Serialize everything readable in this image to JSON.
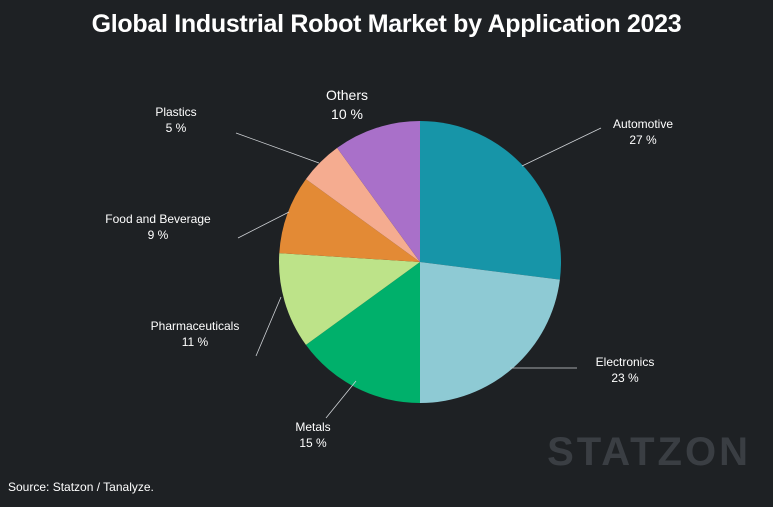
{
  "title": "Global Industrial Robot Market by Application 2023",
  "source": "Source: Statzon / Tanalyze.",
  "watermark": "STATZON",
  "chart_data": {
    "type": "pie",
    "title": "Global Industrial Robot Market by Application 2023",
    "unit": "%",
    "start_angle": "12 o'clock, clockwise",
    "legend": "none (direct labels)",
    "slices": [
      {
        "label": "Automotive",
        "value": 27,
        "value_label": "27 %",
        "color": "#1795a8"
      },
      {
        "label": "Electronics",
        "value": 23,
        "value_label": "23 %",
        "color": "#8ecad4"
      },
      {
        "label": "Metals",
        "value": 15,
        "value_label": "15 %",
        "color": "#00b06b"
      },
      {
        "label": "Pharmaceuticals",
        "value": 11,
        "value_label": "11 %",
        "color": "#bde389"
      },
      {
        "label": "Food and Beverage",
        "value": 9,
        "value_label": "9 %",
        "color": "#e38a35"
      },
      {
        "label": "Plastics",
        "value": 5,
        "value_label": "5 %",
        "color": "#f5ac90"
      },
      {
        "label": "Others",
        "value": 10,
        "value_label": "10 %",
        "color": "#a970c9"
      }
    ]
  }
}
